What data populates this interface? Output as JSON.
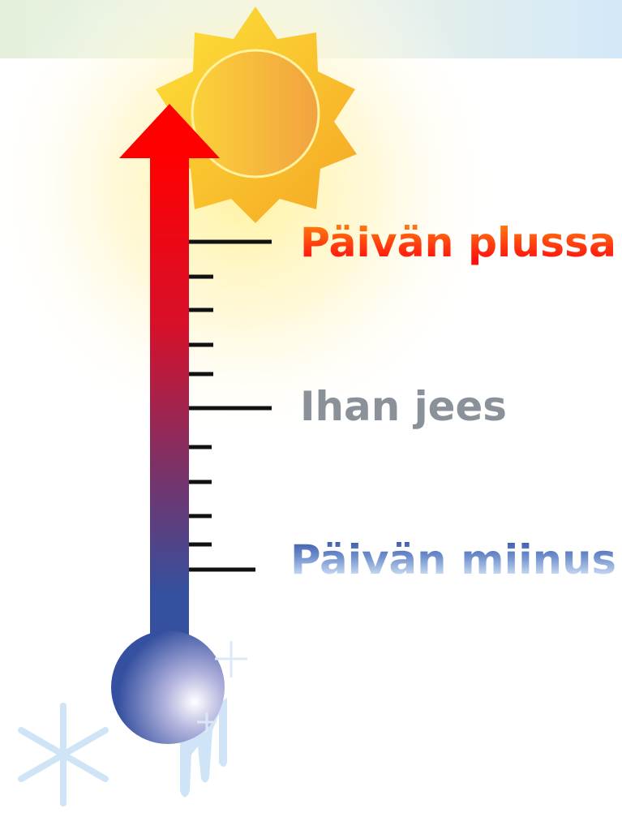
{
  "labels": {
    "top": "Päivän plussa",
    "middle": "Ihan jees",
    "bottom": "Päivän miinus"
  }
}
